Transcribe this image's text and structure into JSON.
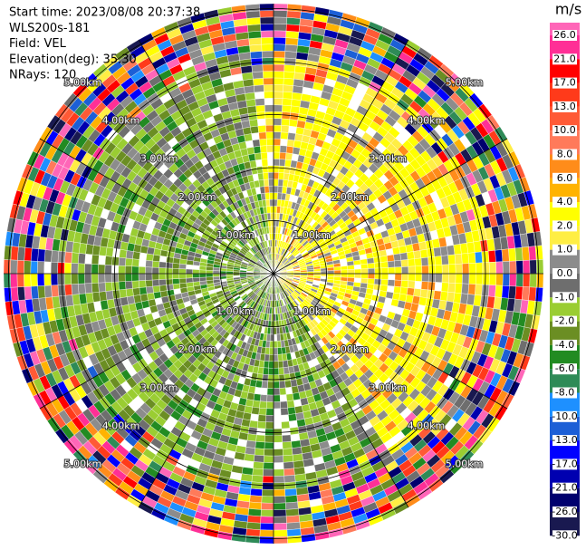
{
  "header": {
    "lines": [
      "Start time: 2023/08/08 20:37:38",
      "WLS200s-181",
      "Field: VEL",
      "Elevation(deg): 35.30",
      "NRays: 120"
    ]
  },
  "rings": [
    "1.00km",
    "2.00km",
    "3.00km",
    "4.00km",
    "5.00km"
  ],
  "colorbar": {
    "unit": "m/s",
    "ticks": [
      {
        "value": 26,
        "label": "26.0"
      },
      {
        "value": 21,
        "label": "21.0"
      },
      {
        "value": 17,
        "label": "17.0"
      },
      {
        "value": 13,
        "label": "13.0"
      },
      {
        "value": 10,
        "label": "10.0"
      },
      {
        "value": 8,
        "label": "8.0"
      },
      {
        "value": 6,
        "label": "6.0"
      },
      {
        "value": 4,
        "label": "4.0"
      },
      {
        "value": 2,
        "label": "2.0"
      },
      {
        "value": 1,
        "label": "1.0"
      },
      {
        "value": 0,
        "label": "0.0"
      },
      {
        "value": -1,
        "label": "-1.0"
      },
      {
        "value": -2,
        "label": "-2.0"
      },
      {
        "value": -4,
        "label": "-4.0"
      },
      {
        "value": -6,
        "label": "-6.0"
      },
      {
        "value": -8,
        "label": "-8.0"
      },
      {
        "value": -10,
        "label": "-10.0"
      },
      {
        "value": -13,
        "label": "-13.0"
      },
      {
        "value": -17,
        "label": "-17.0"
      },
      {
        "value": -21,
        "label": "-21.0"
      },
      {
        "value": -26,
        "label": "-26.0"
      },
      {
        "value": -30,
        "label": "-30.0"
      }
    ],
    "colors": [
      "#ff66b8",
      "#ff2f96",
      "#ff0000",
      "#ff3a1a",
      "#ff5a36",
      "#ff7a5a",
      "#ff8c1a",
      "#ffb300",
      "#ffff00",
      "#ffee44",
      "#8c8c8c",
      "#6e6e6e",
      "#9acd32",
      "#6b8e23",
      "#228b22",
      "#2e8b57",
      "#1e90ff",
      "#1c5fd6",
      "#0000ff",
      "#0000b0",
      "#00006e",
      "#191950"
    ]
  }
}
